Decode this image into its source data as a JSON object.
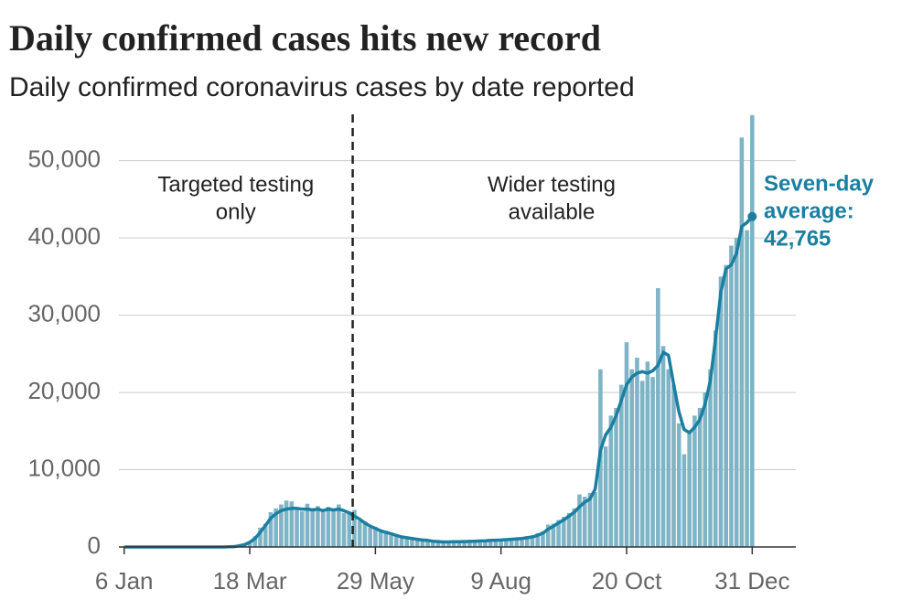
{
  "chart_data": {
    "type": "bar-line",
    "title": "Daily confirmed cases hits new record",
    "subtitle": "Daily confirmed coronavirus cases by date reported",
    "x": [
      0,
      3,
      6,
      9,
      12,
      15,
      18,
      21,
      24,
      27,
      30,
      33,
      36,
      39,
      42,
      45,
      48,
      51,
      54,
      57,
      60,
      63,
      66,
      69,
      72,
      75,
      78,
      81,
      84,
      87,
      90,
      93,
      96,
      99,
      102,
      105,
      108,
      111,
      114,
      117,
      120,
      123,
      126,
      129,
      132,
      135,
      138,
      141,
      144,
      147,
      150,
      153,
      156,
      159,
      162,
      165,
      168,
      171,
      174,
      177,
      180,
      183,
      186,
      189,
      192,
      195,
      198,
      201,
      204,
      207,
      210,
      213,
      216,
      219,
      222,
      225,
      228,
      231,
      234,
      237,
      240,
      243,
      246,
      249,
      252,
      255,
      258,
      261,
      264,
      267,
      270,
      273,
      276,
      279,
      282,
      285,
      288,
      291,
      294,
      297,
      300,
      303,
      306,
      309,
      312,
      315,
      318,
      321,
      324,
      327,
      330,
      333,
      336,
      339,
      342,
      345,
      348,
      351,
      354,
      357,
      360
    ],
    "series": [
      {
        "type": "bar",
        "color": "#7fb4c6",
        "values": [
          0,
          0,
          0,
          0,
          0,
          0,
          0,
          0,
          0,
          0,
          0,
          0,
          0,
          0,
          0,
          0,
          0,
          0,
          0,
          0,
          30,
          60,
          200,
          400,
          700,
          1400,
          2500,
          3000,
          4500,
          5000,
          5500,
          6000,
          5900,
          5000,
          4600,
          5600,
          5000,
          5300,
          4500,
          5200,
          4700,
          5500,
          4400,
          4600,
          4800,
          3400,
          3300,
          2500,
          2600,
          2000,
          2100,
          1500,
          1600,
          1200,
          1300,
          1000,
          1100,
          800,
          900,
          700,
          750,
          600,
          700,
          650,
          750,
          700,
          800,
          700,
          850,
          900,
          800,
          1000,
          1000,
          900,
          1100,
          1200,
          1000,
          1400,
          1500,
          1800,
          2000,
          2900,
          3000,
          3500,
          3900,
          4400,
          5000,
          6800,
          6500,
          7000,
          7100,
          23000,
          13000,
          17000,
          18000,
          21000,
          26500,
          23000,
          24500,
          21500,
          24000,
          22000,
          33500,
          26000,
          23000,
          21000,
          16000,
          12000,
          15000,
          17000,
          18000,
          20000,
          23000,
          28000,
          35000,
          36500,
          39000,
          40000,
          53000,
          41000,
          55900
        ]
      },
      {
        "type": "line",
        "color": "#1a7fa0",
        "values": [
          0,
          0,
          0,
          0,
          0,
          0,
          0,
          0,
          0,
          0,
          0,
          0,
          0,
          0,
          0,
          0,
          0,
          0,
          0,
          0,
          20,
          50,
          150,
          300,
          600,
          1100,
          1900,
          2800,
          3700,
          4300,
          4700,
          4900,
          5000,
          5000,
          4900,
          4900,
          4800,
          4900,
          4700,
          4900,
          4800,
          4900,
          4700,
          4400,
          4000,
          3600,
          3100,
          2700,
          2400,
          2100,
          1900,
          1700,
          1500,
          1300,
          1200,
          1100,
          1000,
          900,
          850,
          750,
          700,
          650,
          650,
          670,
          680,
          700,
          720,
          750,
          780,
          800,
          850,
          880,
          900,
          950,
          1000,
          1050,
          1100,
          1200,
          1300,
          1500,
          1800,
          2300,
          2700,
          3100,
          3500,
          4000,
          4500,
          5200,
          5800,
          6200,
          7500,
          12500,
          14500,
          15500,
          17000,
          19000,
          21000,
          22000,
          22500,
          22700,
          22500,
          22800,
          23500,
          25200,
          24800,
          21000,
          17500,
          15200,
          14800,
          15500,
          16500,
          18500,
          21500,
          27000,
          33000,
          36000,
          36500,
          38000,
          41500,
          42000,
          42765
        ],
        "last_label": [
          "Seven-day",
          "average:",
          "42,765"
        ]
      }
    ],
    "divider_x": 131,
    "annotations": [
      {
        "x": 64,
        "lines": [
          "Targeted testing",
          "only"
        ]
      },
      {
        "x": 245,
        "lines": [
          "Wider testing",
          "available"
        ]
      }
    ],
    "xlim": [
      -3,
      385
    ],
    "xticks": [
      {
        "value": 0,
        "label": "6 Jan"
      },
      {
        "value": 72,
        "label": "18 Mar"
      },
      {
        "value": 144,
        "label": "29 May"
      },
      {
        "value": 216,
        "label": "9 Aug"
      },
      {
        "value": 288,
        "label": "20 Oct"
      },
      {
        "value": 360,
        "label": "31 Dec"
      }
    ],
    "ylim": [
      0,
      56000
    ],
    "yticks": [
      0,
      {
        "value": 10000,
        "label": "10,000"
      },
      {
        "value": 20000,
        "label": "20,000"
      },
      {
        "value": 30000,
        "label": "30,000"
      },
      {
        "value": 40000,
        "label": "40,000"
      },
      {
        "value": 50000,
        "label": "50,000"
      }
    ],
    "grid": true
  }
}
